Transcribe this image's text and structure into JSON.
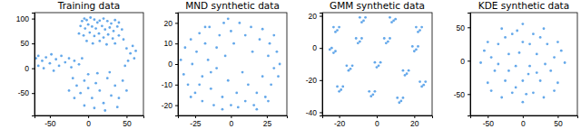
{
  "chart_data": [
    {
      "type": "scatter",
      "title": "Training data",
      "color": "#64a8ea",
      "xlim": [
        -70,
        72
      ],
      "ylim": [
        -95,
        112
      ],
      "xticks": [
        -50,
        0,
        50
      ],
      "yticks": [
        -50,
        0,
        50,
        100
      ],
      "x": [
        -8,
        -5,
        -2,
        3,
        8,
        12,
        15,
        20,
        25,
        30,
        35,
        40,
        -10,
        -4,
        0,
        5,
        10,
        18,
        22,
        28,
        33,
        38,
        44,
        -12,
        -6,
        2,
        8,
        14,
        20,
        26,
        32,
        40,
        46,
        -2,
        6,
        15,
        24,
        35,
        -68,
        -65,
        -60,
        -55,
        -50,
        -48,
        -42,
        -38,
        -35,
        -30,
        -25,
        -22,
        -18,
        -12,
        -8,
        -65,
        -58,
        -45,
        50,
        55,
        60,
        52,
        48,
        58,
        62,
        -20,
        -15,
        -10,
        -5,
        0,
        5,
        10,
        15,
        20,
        25,
        30,
        35,
        40,
        45,
        -18,
        -5,
        8,
        22,
        38,
        -25,
        12,
        28,
        0,
        50
      ],
      "values": [
        95,
        100,
        97,
        102,
        98,
        92,
        96,
        100,
        95,
        90,
        97,
        92,
        85,
        80,
        88,
        84,
        80,
        85,
        78,
        82,
        75,
        84,
        78,
        70,
        66,
        72,
        65,
        70,
        62,
        68,
        60,
        66,
        58,
        55,
        50,
        55,
        48,
        50,
        20,
        25,
        15,
        22,
        10,
        28,
        18,
        5,
        25,
        12,
        20,
        2,
        15,
        8,
        20,
        5,
        0,
        -5,
        40,
        30,
        20,
        15,
        5,
        45,
        35,
        -20,
        -35,
        -50,
        -25,
        -40,
        -60,
        -30,
        -45,
        -70,
        -20,
        -55,
        -35,
        -60,
        -25,
        -60,
        -75,
        -80,
        -85,
        -78,
        -45,
        -10,
        -8,
        -12,
        -45
      ]
    },
    {
      "type": "scatter",
      "title": "MND synthetic data",
      "color": "#64a8ea",
      "xlim": [
        -37,
        39
      ],
      "ylim": [
        -25,
        25
      ],
      "xticks": [
        -25,
        0,
        25
      ],
      "yticks": [
        -20,
        -10,
        0,
        10,
        20
      ],
      "x": [
        -35,
        -33,
        -32,
        -30,
        -28,
        -27,
        -25,
        -24,
        -22,
        -20,
        -20,
        -18,
        -16,
        -15,
        -14,
        -12,
        -10,
        -10,
        -8,
        -6,
        -5,
        -4,
        -2,
        0,
        0,
        2,
        4,
        6,
        8,
        10,
        10,
        12,
        14,
        15,
        16,
        18,
        20,
        22,
        22,
        24,
        26,
        27,
        28,
        30,
        30,
        32,
        33,
        34,
        -28,
        -22,
        -6,
        18,
        -2,
        -18,
        26,
        5,
        -14
      ],
      "values": [
        2,
        -5,
        8,
        -10,
        12,
        0,
        -14,
        6,
        15,
        -6,
        -18,
        10,
        2,
        18,
        -12,
        -20,
        8,
        -2,
        14,
        -16,
        20,
        4,
        -8,
        16,
        -20,
        10,
        -14,
        20,
        -4,
        14,
        -18,
        -10,
        18,
        6,
        -20,
        -14,
        12,
        -6,
        17,
        -16,
        4,
        10,
        -10,
        -2,
        14,
        6,
        -6,
        0,
        -16,
        -10,
        -22,
        -22,
        22,
        18,
        -18,
        -21,
        -4
      ]
    },
    {
      "type": "scatter",
      "title": "GMM synthetic data",
      "color": "#64a8ea",
      "xlim": [
        -29,
        29.5
      ],
      "ylim": [
        -42,
        22
      ],
      "xticks": [
        -20,
        0,
        20
      ],
      "yticks": [
        -40,
        -20,
        0,
        20
      ],
      "x": [
        -23,
        -21,
        -22,
        -20,
        -9,
        -7,
        -8,
        -6,
        7,
        9,
        8,
        10,
        21,
        23,
        22,
        24,
        -25,
        -23,
        -24,
        -22,
        -11,
        -9,
        -10,
        -8,
        4,
        6,
        5,
        7,
        19,
        21,
        20,
        22,
        -16,
        -14,
        -15,
        -13,
        -1,
        1,
        0,
        2,
        14,
        16,
        15,
        17,
        -21,
        -19,
        -20,
        -18,
        -4,
        -2,
        -3,
        -1,
        11,
        13,
        12,
        14,
        23,
        25,
        24,
        26
      ],
      "values": [
        13,
        11,
        10,
        13,
        19,
        17,
        16,
        19,
        19,
        17,
        16,
        18,
        13,
        11,
        10,
        13,
        -1,
        -3,
        0,
        -2,
        6,
        4,
        3,
        6,
        6,
        4,
        3,
        6,
        1,
        -1,
        -2,
        1,
        -11,
        -13,
        -14,
        -11,
        -9,
        -11,
        -12,
        -9,
        -14,
        -16,
        -17,
        -14,
        -24,
        -26,
        -27,
        -24,
        -27,
        -29,
        -30,
        -27,
        -31,
        -33,
        -34,
        -31,
        -21,
        -23,
        -24,
        -21
      ]
    },
    {
      "type": "scatter",
      "title": "KDE synthetic data",
      "color": "#64a8ea",
      "xlim": [
        -75,
        78
      ],
      "ylim": [
        -82,
        72
      ],
      "xticks": [
        -50,
        0,
        50
      ],
      "yticks": [
        -50,
        0,
        50
      ],
      "x": [
        0,
        -30,
        30,
        -50,
        50,
        -60,
        60,
        -50,
        50,
        -30,
        30,
        0,
        -15,
        15,
        -35,
        0,
        35,
        -45,
        -20,
        20,
        45,
        -40,
        -10,
        10,
        40,
        -25,
        0,
        25,
        -15,
        15,
        -5,
        -55,
        55,
        -45,
        45,
        -20,
        20,
        -10,
        10,
        -25,
        25,
        5,
        -35,
        32,
        -8,
        8
      ],
      "values": [
        55,
        48,
        48,
        28,
        28,
        -3,
        -3,
        -33,
        -33,
        -55,
        -55,
        -62,
        40,
        40,
        25,
        28,
        25,
        5,
        10,
        10,
        5,
        -15,
        -8,
        -8,
        -15,
        -30,
        -30,
        -30,
        -48,
        -48,
        12,
        15,
        15,
        -45,
        -45,
        -15,
        -18,
        -40,
        25,
        35,
        35,
        -50,
        -5,
        -5,
        45,
        -20
      ]
    }
  ]
}
